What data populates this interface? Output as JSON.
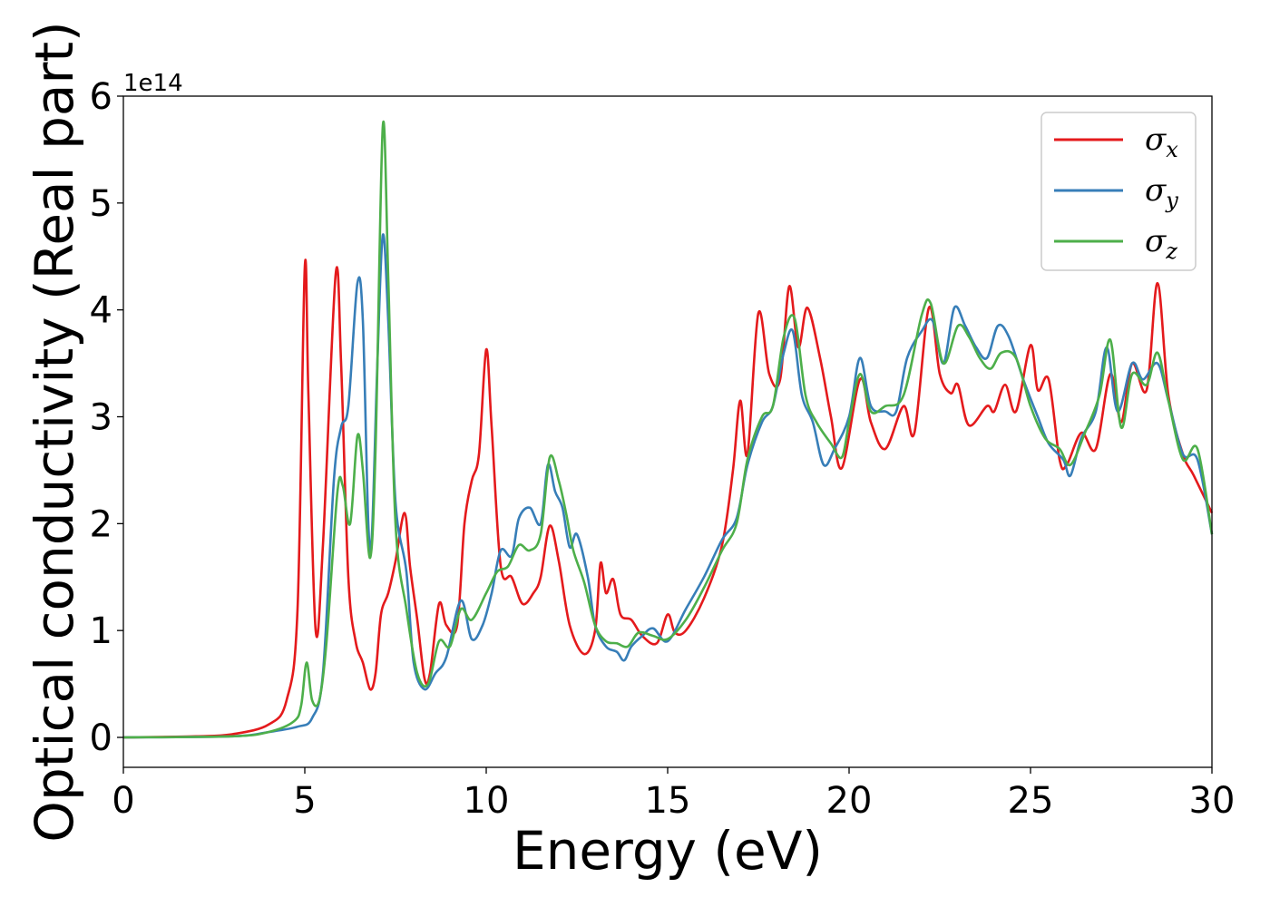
{
  "chart_data": {
    "type": "line",
    "xlabel": "Energy (eV)",
    "ylabel": "Optical conductivity (Real part)",
    "y_offset_label": "1e14",
    "xlim": [
      0,
      30
    ],
    "ylim": [
      -0.28,
      6.0
    ],
    "xticks": [
      0,
      5,
      10,
      15,
      20,
      25,
      30
    ],
    "yticks": [
      0,
      1,
      2,
      3,
      4,
      5,
      6
    ],
    "grid": false,
    "legend": {
      "placement": "top-right"
    },
    "series": [
      {
        "name": "σ",
        "sub": "x",
        "color": "#e41a1c",
        "points": [
          [
            0,
            0
          ],
          [
            2,
            0.01
          ],
          [
            3,
            0.03
          ],
          [
            4,
            0.12
          ],
          [
            4.5,
            0.35
          ],
          [
            4.8,
            1.2
          ],
          [
            5.0,
            4.4
          ],
          [
            5.1,
            3.2
          ],
          [
            5.3,
            1.0
          ],
          [
            5.5,
            1.8
          ],
          [
            5.85,
            4.33
          ],
          [
            6.0,
            3.5
          ],
          [
            6.2,
            1.5
          ],
          [
            6.4,
            0.9
          ],
          [
            6.6,
            0.7
          ],
          [
            6.8,
            0.45
          ],
          [
            6.95,
            0.6
          ],
          [
            7.1,
            1.15
          ],
          [
            7.3,
            1.35
          ],
          [
            7.5,
            1.65
          ],
          [
            7.75,
            2.1
          ],
          [
            7.9,
            1.6
          ],
          [
            8.1,
            1.1
          ],
          [
            8.3,
            0.55
          ],
          [
            8.45,
            0.6
          ],
          [
            8.7,
            1.25
          ],
          [
            8.9,
            1.05
          ],
          [
            9.2,
            1.05
          ],
          [
            9.4,
            2.0
          ],
          [
            9.6,
            2.4
          ],
          [
            9.8,
            2.65
          ],
          [
            10.0,
            3.63
          ],
          [
            10.15,
            2.9
          ],
          [
            10.4,
            1.6
          ],
          [
            10.7,
            1.5
          ],
          [
            11.0,
            1.25
          ],
          [
            11.3,
            1.35
          ],
          [
            11.5,
            1.5
          ],
          [
            11.75,
            1.98
          ],
          [
            12.0,
            1.65
          ],
          [
            12.3,
            1.05
          ],
          [
            12.7,
            0.78
          ],
          [
            13.0,
            1.0
          ],
          [
            13.15,
            1.63
          ],
          [
            13.3,
            1.35
          ],
          [
            13.5,
            1.48
          ],
          [
            13.7,
            1.15
          ],
          [
            14.0,
            1.1
          ],
          [
            14.3,
            0.95
          ],
          [
            14.7,
            0.88
          ],
          [
            15.0,
            1.15
          ],
          [
            15.2,
            0.98
          ],
          [
            15.5,
            1.0
          ],
          [
            16.0,
            1.3
          ],
          [
            16.5,
            1.8
          ],
          [
            16.8,
            2.5
          ],
          [
            17.0,
            3.15
          ],
          [
            17.2,
            2.65
          ],
          [
            17.5,
            3.97
          ],
          [
            17.8,
            3.4
          ],
          [
            18.1,
            3.35
          ],
          [
            18.35,
            4.22
          ],
          [
            18.6,
            3.65
          ],
          [
            18.85,
            4.02
          ],
          [
            19.2,
            3.55
          ],
          [
            19.5,
            3.0
          ],
          [
            19.8,
            2.52
          ],
          [
            20.3,
            3.35
          ],
          [
            20.6,
            2.95
          ],
          [
            21.0,
            2.7
          ],
          [
            21.5,
            3.1
          ],
          [
            21.8,
            2.85
          ],
          [
            22.2,
            4.02
          ],
          [
            22.5,
            3.4
          ],
          [
            22.8,
            3.22
          ],
          [
            23.0,
            3.3
          ],
          [
            23.3,
            2.92
          ],
          [
            23.8,
            3.1
          ],
          [
            24.0,
            3.05
          ],
          [
            24.3,
            3.3
          ],
          [
            24.6,
            3.05
          ],
          [
            25.0,
            3.67
          ],
          [
            25.2,
            3.25
          ],
          [
            25.5,
            3.35
          ],
          [
            25.8,
            2.6
          ],
          [
            26.0,
            2.55
          ],
          [
            26.4,
            2.85
          ],
          [
            26.8,
            2.7
          ],
          [
            27.2,
            3.4
          ],
          [
            27.5,
            2.95
          ],
          [
            27.8,
            3.5
          ],
          [
            28.2,
            3.25
          ],
          [
            28.5,
            4.25
          ],
          [
            28.8,
            3.2
          ],
          [
            29.2,
            2.65
          ],
          [
            29.5,
            2.45
          ],
          [
            30,
            2.1
          ]
        ]
      },
      {
        "name": "σ",
        "sub": "y",
        "color": "#377eb8",
        "points": [
          [
            0,
            0
          ],
          [
            3,
            0.01
          ],
          [
            4,
            0.05
          ],
          [
            4.8,
            0.1
          ],
          [
            5.2,
            0.18
          ],
          [
            5.5,
            0.6
          ],
          [
            5.8,
            2.4
          ],
          [
            6.0,
            2.9
          ],
          [
            6.2,
            3.1
          ],
          [
            6.45,
            4.25
          ],
          [
            6.6,
            3.9
          ],
          [
            6.75,
            2.0
          ],
          [
            6.85,
            1.9
          ],
          [
            7.0,
            3.5
          ],
          [
            7.15,
            4.7
          ],
          [
            7.3,
            3.9
          ],
          [
            7.5,
            2.2
          ],
          [
            7.8,
            1.55
          ],
          [
            8.0,
            0.7
          ],
          [
            8.3,
            0.45
          ],
          [
            8.6,
            0.6
          ],
          [
            8.9,
            0.75
          ],
          [
            9.3,
            1.28
          ],
          [
            9.6,
            0.92
          ],
          [
            9.9,
            1.05
          ],
          [
            10.15,
            1.35
          ],
          [
            10.4,
            1.75
          ],
          [
            10.7,
            1.7
          ],
          [
            10.9,
            2.05
          ],
          [
            11.2,
            2.15
          ],
          [
            11.5,
            2.0
          ],
          [
            11.7,
            2.55
          ],
          [
            11.9,
            2.3
          ],
          [
            12.1,
            2.15
          ],
          [
            12.3,
            1.78
          ],
          [
            12.5,
            1.9
          ],
          [
            12.8,
            1.5
          ],
          [
            13.0,
            1.05
          ],
          [
            13.3,
            0.85
          ],
          [
            13.6,
            0.8
          ],
          [
            13.8,
            0.72
          ],
          [
            14.0,
            0.85
          ],
          [
            14.3,
            0.95
          ],
          [
            14.6,
            1.02
          ],
          [
            15.0,
            0.9
          ],
          [
            15.5,
            1.2
          ],
          [
            16.0,
            1.5
          ],
          [
            16.5,
            1.85
          ],
          [
            16.9,
            2.05
          ],
          [
            17.2,
            2.55
          ],
          [
            17.6,
            2.95
          ],
          [
            17.9,
            3.1
          ],
          [
            18.2,
            3.6
          ],
          [
            18.45,
            3.8
          ],
          [
            18.7,
            3.2
          ],
          [
            19.0,
            2.95
          ],
          [
            19.3,
            2.55
          ],
          [
            19.6,
            2.7
          ],
          [
            20.0,
            3.0
          ],
          [
            20.3,
            3.55
          ],
          [
            20.6,
            3.1
          ],
          [
            21.0,
            3.05
          ],
          [
            21.3,
            3.05
          ],
          [
            21.6,
            3.55
          ],
          [
            22.0,
            3.8
          ],
          [
            22.3,
            3.9
          ],
          [
            22.6,
            3.5
          ],
          [
            22.9,
            4.02
          ],
          [
            23.2,
            3.85
          ],
          [
            23.5,
            3.65
          ],
          [
            23.8,
            3.55
          ],
          [
            24.1,
            3.85
          ],
          [
            24.4,
            3.75
          ],
          [
            24.8,
            3.35
          ],
          [
            25.2,
            3.0
          ],
          [
            25.5,
            2.75
          ],
          [
            25.9,
            2.6
          ],
          [
            26.1,
            2.45
          ],
          [
            26.4,
            2.8
          ],
          [
            26.8,
            3.05
          ],
          [
            27.1,
            3.65
          ],
          [
            27.4,
            3.05
          ],
          [
            27.8,
            3.5
          ],
          [
            28.1,
            3.35
          ],
          [
            28.5,
            3.5
          ],
          [
            28.8,
            3.15
          ],
          [
            29.2,
            2.65
          ],
          [
            29.6,
            2.6
          ],
          [
            30,
            1.9
          ]
        ]
      },
      {
        "name": "σ",
        "sub": "z",
        "color": "#4daf4a",
        "points": [
          [
            0,
            0
          ],
          [
            3,
            0.01
          ],
          [
            4,
            0.05
          ],
          [
            4.7,
            0.15
          ],
          [
            4.9,
            0.3
          ],
          [
            5.05,
            0.7
          ],
          [
            5.2,
            0.35
          ],
          [
            5.4,
            0.35
          ],
          [
            5.6,
            0.9
          ],
          [
            5.9,
            2.3
          ],
          [
            6.05,
            2.35
          ],
          [
            6.25,
            2.0
          ],
          [
            6.45,
            2.82
          ],
          [
            6.6,
            2.5
          ],
          [
            6.8,
            1.68
          ],
          [
            6.95,
            2.7
          ],
          [
            7.15,
            5.72
          ],
          [
            7.3,
            4.3
          ],
          [
            7.5,
            2.0
          ],
          [
            7.8,
            1.2
          ],
          [
            8.1,
            0.6
          ],
          [
            8.4,
            0.5
          ],
          [
            8.7,
            0.9
          ],
          [
            9.0,
            0.85
          ],
          [
            9.3,
            1.2
          ],
          [
            9.6,
            1.1
          ],
          [
            10.0,
            1.35
          ],
          [
            10.3,
            1.55
          ],
          [
            10.6,
            1.6
          ],
          [
            10.9,
            1.8
          ],
          [
            11.2,
            1.75
          ],
          [
            11.5,
            1.9
          ],
          [
            11.75,
            2.62
          ],
          [
            12.0,
            2.4
          ],
          [
            12.2,
            2.1
          ],
          [
            12.4,
            1.75
          ],
          [
            12.7,
            1.45
          ],
          [
            13.0,
            1.05
          ],
          [
            13.3,
            0.9
          ],
          [
            13.6,
            0.88
          ],
          [
            13.9,
            0.85
          ],
          [
            14.2,
            0.98
          ],
          [
            14.6,
            0.95
          ],
          [
            15.0,
            0.92
          ],
          [
            15.5,
            1.1
          ],
          [
            16.0,
            1.4
          ],
          [
            16.5,
            1.75
          ],
          [
            16.9,
            2.0
          ],
          [
            17.2,
            2.6
          ],
          [
            17.6,
            3.0
          ],
          [
            17.9,
            3.1
          ],
          [
            18.2,
            3.75
          ],
          [
            18.5,
            3.92
          ],
          [
            18.8,
            3.2
          ],
          [
            19.1,
            2.95
          ],
          [
            19.5,
            2.75
          ],
          [
            19.8,
            2.62
          ],
          [
            20.0,
            2.95
          ],
          [
            20.3,
            3.4
          ],
          [
            20.6,
            3.05
          ],
          [
            21.0,
            3.1
          ],
          [
            21.5,
            3.2
          ],
          [
            22.0,
            3.95
          ],
          [
            22.25,
            4.06
          ],
          [
            22.6,
            3.5
          ],
          [
            23.0,
            3.85
          ],
          [
            23.3,
            3.75
          ],
          [
            23.6,
            3.55
          ],
          [
            23.9,
            3.45
          ],
          [
            24.2,
            3.6
          ],
          [
            24.6,
            3.55
          ],
          [
            25.0,
            3.1
          ],
          [
            25.4,
            2.8
          ],
          [
            25.8,
            2.7
          ],
          [
            26.1,
            2.55
          ],
          [
            26.5,
            2.85
          ],
          [
            26.9,
            3.2
          ],
          [
            27.2,
            3.72
          ],
          [
            27.5,
            2.9
          ],
          [
            27.8,
            3.4
          ],
          [
            28.2,
            3.3
          ],
          [
            28.5,
            3.6
          ],
          [
            28.8,
            3.15
          ],
          [
            29.2,
            2.6
          ],
          [
            29.6,
            2.7
          ],
          [
            30,
            1.9
          ]
        ]
      }
    ]
  }
}
